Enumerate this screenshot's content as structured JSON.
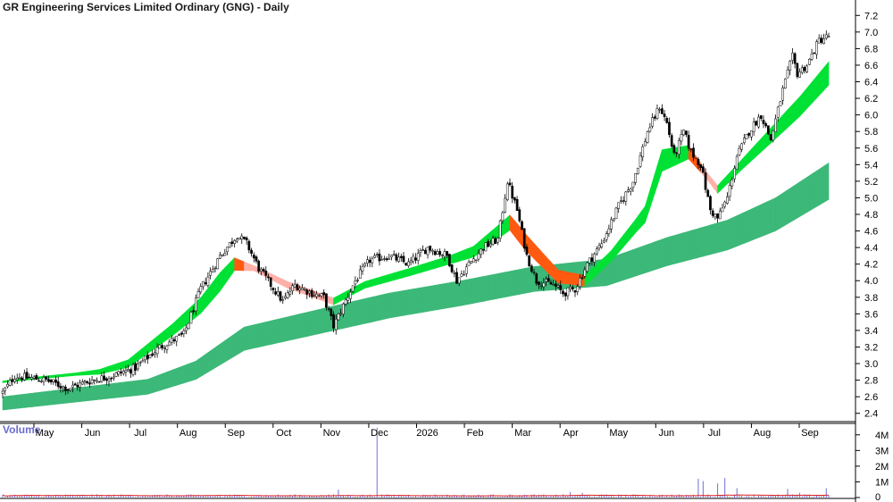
{
  "chart_data": {
    "type": "candlestick",
    "title": "GR Engineering Services Limited Ordinary (GNG) - Daily",
    "interval": "Daily",
    "price_axis": {
      "ticks": [
        "7.2",
        "7.0",
        "6.8",
        "6.6",
        "6.4",
        "6.2",
        "6.0",
        "5.8",
        "5.6",
        "5.4",
        "5.2",
        "5.0",
        "4.8",
        "4.6",
        "4.4",
        "4.2",
        "4.0",
        "3.8",
        "3.6",
        "3.4",
        "3.2",
        "3.0",
        "2.8",
        "2.6",
        "2.4"
      ],
      "range": [
        2.3,
        7.3
      ]
    },
    "volume_panel": {
      "title": "Volume",
      "ticks": [
        "4M",
        "3M",
        "2M",
        "1M",
        "0"
      ],
      "range": [
        0,
        4500000
      ]
    },
    "x_axis_labels": [
      "May",
      "Jun",
      "Jul",
      "Aug",
      "Sep",
      "Oct",
      "Nov",
      "Dec",
      "2026",
      "Feb",
      "Mar",
      "Apr",
      "May",
      "Jun",
      "Jul",
      "Aug",
      "Sep"
    ],
    "price_path": [
      [
        0,
        2.65
      ],
      [
        5,
        2.85
      ],
      [
        18,
        2.8
      ],
      [
        27,
        2.7
      ],
      [
        37,
        2.8
      ],
      [
        45,
        2.85
      ],
      [
        55,
        2.95
      ],
      [
        65,
        3.2
      ],
      [
        75,
        3.35
      ],
      [
        82,
        3.9
      ],
      [
        90,
        4.3
      ],
      [
        97,
        4.55
      ],
      [
        101,
        4.45
      ],
      [
        106,
        4.15
      ],
      [
        111,
        3.95
      ],
      [
        116,
        3.75
      ],
      [
        121,
        3.95
      ],
      [
        128,
        3.85
      ],
      [
        133,
        3.8
      ],
      [
        137,
        3.45
      ],
      [
        141,
        3.7
      ],
      [
        146,
        4.0
      ],
      [
        152,
        4.25
      ],
      [
        160,
        4.3
      ],
      [
        168,
        4.2
      ],
      [
        176,
        4.4
      ],
      [
        184,
        4.3
      ],
      [
        188,
        4.0
      ],
      [
        193,
        4.2
      ],
      [
        199,
        4.4
      ],
      [
        205,
        4.5
      ],
      [
        209,
        5.2
      ],
      [
        213,
        4.85
      ],
      [
        217,
        4.3
      ],
      [
        221,
        4.0
      ],
      [
        228,
        3.95
      ],
      [
        232,
        3.85
      ],
      [
        237,
        3.9
      ],
      [
        242,
        4.2
      ],
      [
        248,
        4.45
      ],
      [
        255,
        4.9
      ],
      [
        261,
        5.2
      ],
      [
        267,
        5.8
      ],
      [
        272,
        6.1
      ],
      [
        275,
        5.9
      ],
      [
        278,
        5.5
      ],
      [
        282,
        5.8
      ],
      [
        285,
        5.55
      ],
      [
        289,
        5.4
      ],
      [
        293,
        4.85
      ],
      [
        296,
        4.75
      ],
      [
        300,
        5.0
      ],
      [
        304,
        5.5
      ],
      [
        309,
        5.8
      ],
      [
        314,
        6.0
      ],
      [
        318,
        5.7
      ],
      [
        323,
        6.3
      ],
      [
        327,
        6.7
      ],
      [
        329,
        6.5
      ],
      [
        333,
        6.6
      ],
      [
        338,
        6.9
      ],
      [
        342,
        6.95
      ]
    ],
    "candle_count": 343,
    "fast_ribbon_path": [
      [
        0,
        2.78
      ],
      [
        12,
        2.82
      ],
      [
        40,
        2.9
      ],
      [
        52,
        3.0
      ],
      [
        70,
        3.4
      ],
      [
        82,
        3.7
      ],
      [
        96,
        4.2
      ],
      [
        104,
        4.15
      ],
      [
        118,
        3.95
      ],
      [
        137,
        3.75
      ],
      [
        150,
        3.95
      ],
      [
        168,
        4.1
      ],
      [
        185,
        4.25
      ],
      [
        195,
        4.35
      ],
      [
        210,
        4.7
      ],
      [
        217,
        4.45
      ],
      [
        230,
        4.05
      ],
      [
        241,
        4.0
      ],
      [
        252,
        4.3
      ],
      [
        266,
        4.8
      ],
      [
        273,
        5.45
      ],
      [
        284,
        5.55
      ],
      [
        296,
        5.1
      ],
      [
        306,
        5.4
      ],
      [
        318,
        5.75
      ],
      [
        330,
        6.1
      ],
      [
        342,
        6.5
      ]
    ],
    "fast_ribbon_width": [
      [
        0,
        0.02
      ],
      [
        30,
        0.03
      ],
      [
        70,
        0.14
      ],
      [
        90,
        0.22
      ],
      [
        104,
        0.06
      ],
      [
        120,
        0.08
      ],
      [
        150,
        0.08
      ],
      [
        185,
        0.1
      ],
      [
        205,
        0.16
      ],
      [
        215,
        0.2
      ],
      [
        235,
        0.14
      ],
      [
        250,
        0.12
      ],
      [
        262,
        0.16
      ],
      [
        273,
        0.26
      ],
      [
        280,
        0.2
      ],
      [
        292,
        0.08
      ],
      [
        306,
        0.12
      ],
      [
        326,
        0.22
      ],
      [
        342,
        0.28
      ]
    ],
    "slow_ribbon_path": [
      [
        0,
        2.52
      ],
      [
        60,
        2.72
      ],
      [
        80,
        2.92
      ],
      [
        100,
        3.3
      ],
      [
        130,
        3.5
      ],
      [
        160,
        3.7
      ],
      [
        190,
        3.85
      ],
      [
        220,
        4.02
      ],
      [
        250,
        4.1
      ],
      [
        275,
        4.35
      ],
      [
        300,
        4.55
      ],
      [
        320,
        4.8
      ],
      [
        342,
        5.2
      ]
    ],
    "slow_ribbon_width": [
      [
        0,
        0.16
      ],
      [
        60,
        0.18
      ],
      [
        80,
        0.22
      ],
      [
        100,
        0.28
      ],
      [
        150,
        0.3
      ],
      [
        220,
        0.3
      ],
      [
        250,
        0.32
      ],
      [
        300,
        0.36
      ],
      [
        342,
        0.44
      ]
    ],
    "volume_base": 120000,
    "volume_spikes": [
      [
        2,
        0.1
      ],
      [
        60,
        0.08
      ],
      [
        91,
        0.05
      ],
      [
        139,
        0.5
      ],
      [
        155,
        4.45
      ],
      [
        235,
        0.35
      ],
      [
        240,
        0.3
      ],
      [
        288,
        1.2
      ],
      [
        290,
        1.05
      ],
      [
        296,
        0.9
      ],
      [
        299,
        1.25
      ],
      [
        304,
        0.6
      ],
      [
        325,
        0.55
      ],
      [
        330,
        0.3
      ],
      [
        341,
        0.6
      ]
    ],
    "colors": {
      "candle": "#000000",
      "candle_body": "#ffffff",
      "fast_ribbon_up": "#00e135",
      "fast_ribbon_down_wide": "#ff5a10",
      "fast_ribbon_down_narrow": "#ffb0a8",
      "slow_ribbon": "#3cb878",
      "volume_bar": "#7070d8",
      "volume_average": "#e02020",
      "grid": "#cccccc",
      "volume_title": "#6a6ad0"
    },
    "legend": "none",
    "grid": false
  }
}
